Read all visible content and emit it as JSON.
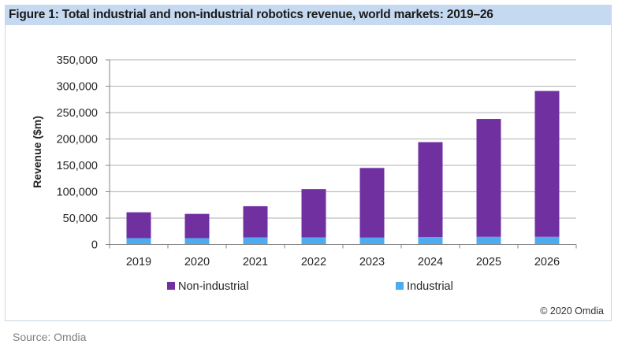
{
  "figure": {
    "title": "Figure 1: Total industrial and non-industrial robotics revenue, world markets: 2019–26",
    "copyright": "© 2020 Omdia",
    "source": "Source: Omdia"
  },
  "colors": {
    "non_industrial": "#7030a0",
    "industrial": "#4dabf0",
    "header_bg": "#c5d9f1",
    "gridline": "#bfbfbf"
  },
  "chart_data": {
    "type": "bar",
    "stacked": true,
    "title": "Figure 1: Total industrial and non-industrial robotics revenue, world markets: 2019–26",
    "xlabel": "",
    "ylabel": "Revenue ($m)",
    "ylim": [
      0,
      350000
    ],
    "yticks": [
      0,
      50000,
      100000,
      150000,
      200000,
      250000,
      300000,
      350000
    ],
    "ytick_labels": [
      "0",
      "50,000",
      "100,000",
      "150,000",
      "200,000",
      "250,000",
      "300,000",
      "350,000"
    ],
    "grid": true,
    "legend": "bottom",
    "categories": [
      "2019",
      "2020",
      "2021",
      "2022",
      "2023",
      "2024",
      "2025",
      "2026"
    ],
    "series": [
      {
        "name": "Industrial",
        "color": "#4dabf0",
        "values": [
          12000,
          12000,
          13500,
          13500,
          13000,
          14000,
          14500,
          14500
        ]
      },
      {
        "name": "Non-industrial",
        "color": "#7030a0",
        "values": [
          49000,
          46000,
          59000,
          91500,
          132000,
          180000,
          223500,
          276500
        ]
      }
    ],
    "totals": [
      61000,
      58000,
      72500,
      105000,
      145000,
      194000,
      238000,
      291000
    ],
    "legend_entries": [
      "Non-industrial",
      "Industrial"
    ]
  }
}
